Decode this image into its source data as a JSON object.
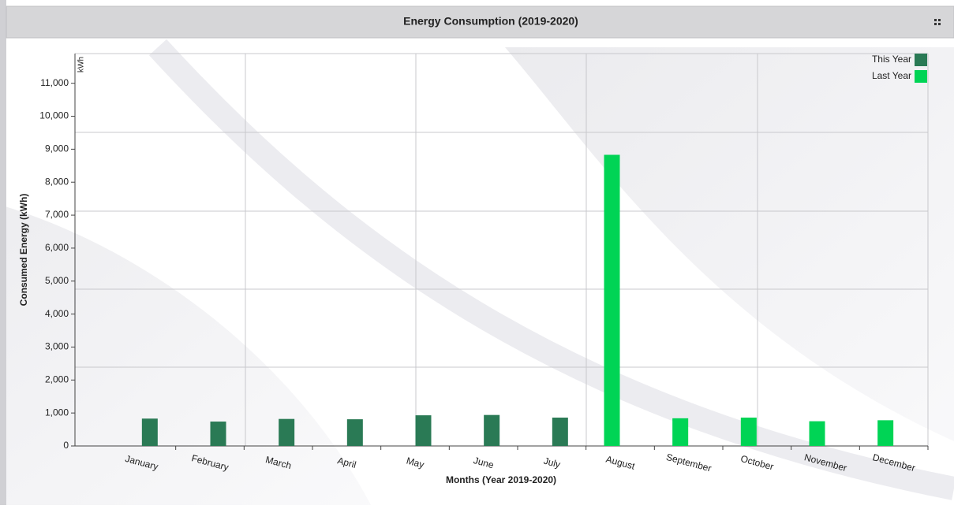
{
  "chart_data": {
    "type": "bar",
    "title": "Energy Consumption (2019-2020)",
    "x_label": "Months (Year 2019-2020)",
    "y_label": "Consumed Energy (kWh)",
    "unit": "kWh",
    "categories": [
      "January",
      "February",
      "March",
      "April",
      "May",
      "June",
      "July",
      "August",
      "September",
      "October",
      "November",
      "December"
    ],
    "series": [
      {
        "name": "This Year",
        "color": "#2a7a55",
        "values": [
          830,
          740,
          820,
          810,
          930,
          940,
          860,
          null,
          null,
          null,
          null,
          null
        ]
      },
      {
        "name": "Last Year",
        "color": "#00d455",
        "values": [
          null,
          null,
          null,
          null,
          null,
          null,
          null,
          8830,
          840,
          860,
          750,
          780
        ]
      }
    ],
    "ylim": [
      0,
      11900
    ],
    "yticks": [
      0,
      {
        "value": 1000,
        "label": "1,000"
      },
      {
        "value": 2000,
        "label": "2,000"
      },
      {
        "value": 3000,
        "label": "3,000"
      },
      {
        "value": 4000,
        "label": "4,000"
      },
      {
        "value": 5000,
        "label": "5,000"
      },
      {
        "value": 6000,
        "label": "6,000"
      },
      {
        "value": 7000,
        "label": "7,000"
      },
      {
        "value": 8000,
        "label": "8,000"
      },
      {
        "value": 9000,
        "label": "9,000"
      },
      {
        "value": 10000,
        "label": "10,000"
      },
      {
        "value": 11000,
        "label": "11,000"
      }
    ],
    "legend": "top-right"
  }
}
